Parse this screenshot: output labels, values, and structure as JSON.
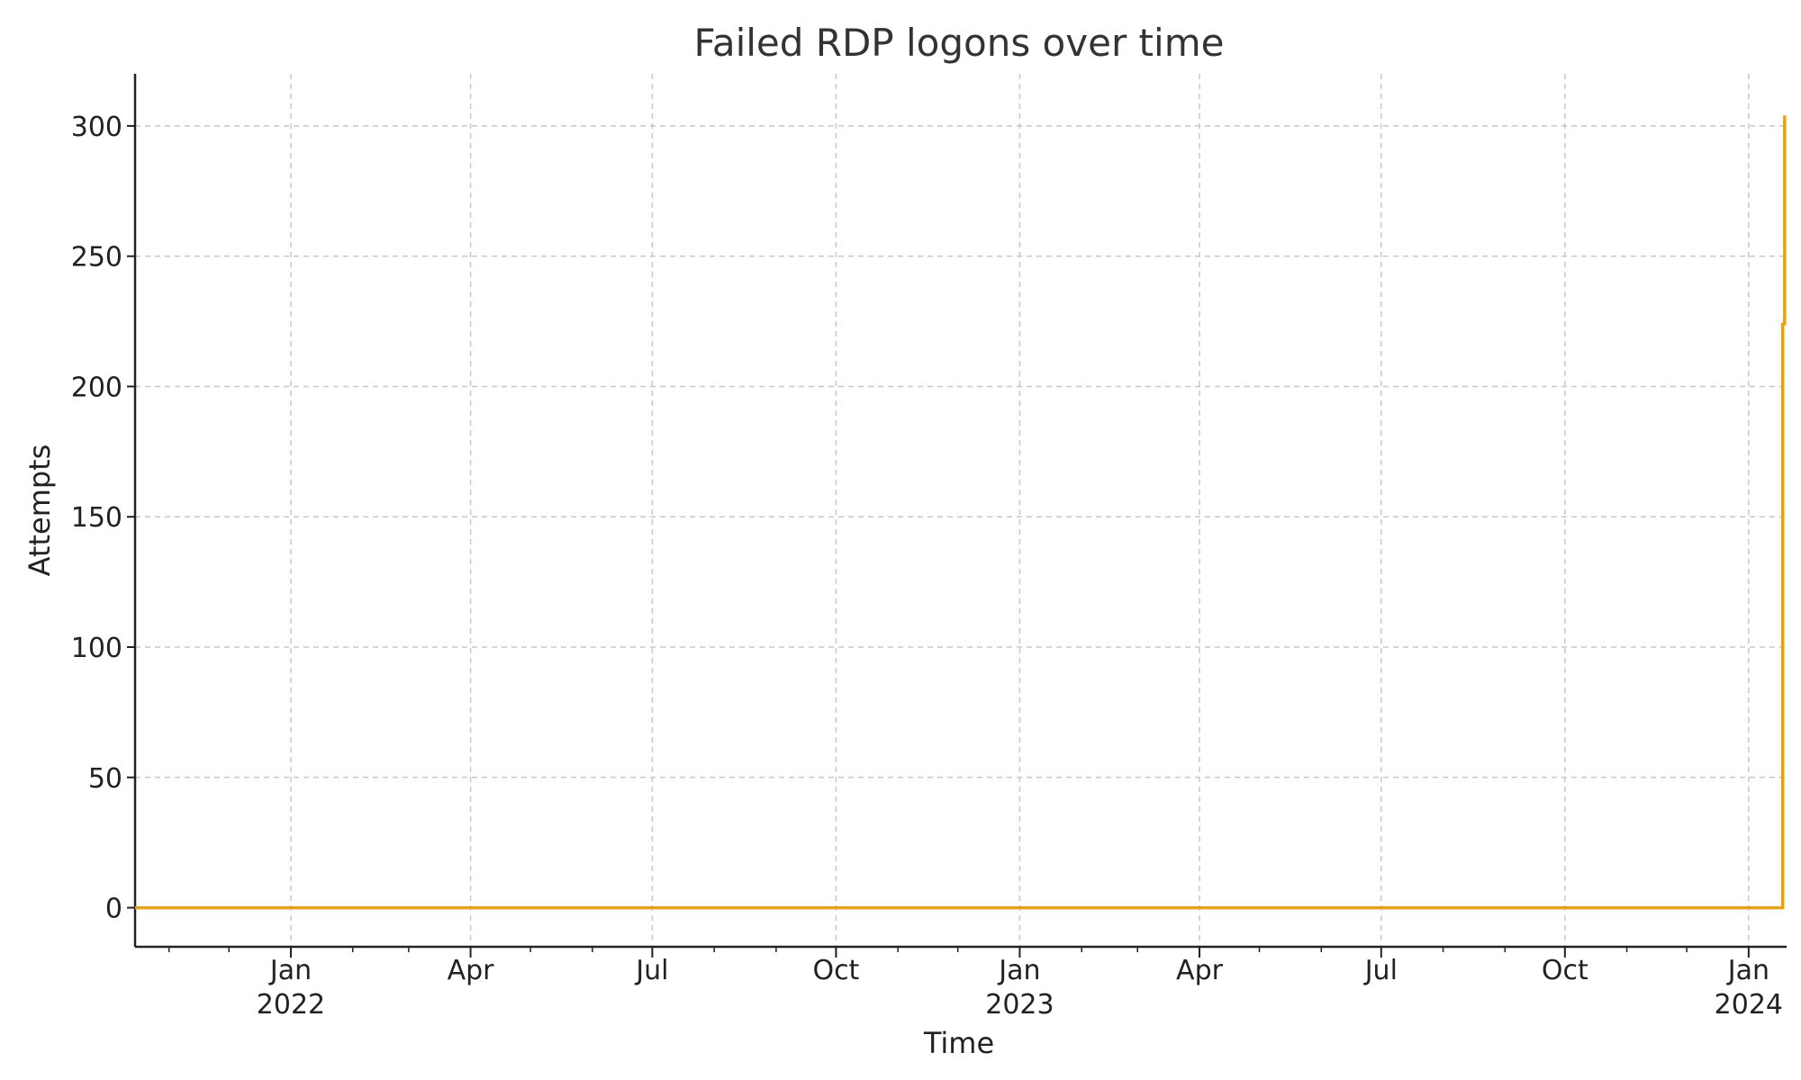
{
  "chart_data": {
    "type": "line",
    "title": "Failed RDP logons over time",
    "xlabel": "Time",
    "ylabel": "Attempts",
    "grid": true,
    "legend": "none",
    "xlim": [
      "2021-10-15",
      "2024-01-20"
    ],
    "ylim": [
      -15,
      320
    ],
    "yticks": [
      0,
      50,
      100,
      150,
      200,
      250,
      300
    ],
    "xticks": [
      {
        "date": "2022-01-01",
        "label": "Jan",
        "year": "2022"
      },
      {
        "date": "2022-04-01",
        "label": "Apr",
        "year": ""
      },
      {
        "date": "2022-07-01",
        "label": "Jul",
        "year": ""
      },
      {
        "date": "2022-10-01",
        "label": "Oct",
        "year": ""
      },
      {
        "date": "2023-01-01",
        "label": "Jan",
        "year": "2023"
      },
      {
        "date": "2023-04-01",
        "label": "Apr",
        "year": ""
      },
      {
        "date": "2023-07-01",
        "label": "Jul",
        "year": ""
      },
      {
        "date": "2023-10-01",
        "label": "Oct",
        "year": ""
      },
      {
        "date": "2024-01-01",
        "label": "Jan",
        "year": "2024"
      }
    ],
    "series": [
      {
        "color": "#E3A21A",
        "x": [
          "2021-10-15",
          "2024-01-17",
          "2024-01-18",
          "2024-01-18",
          "2024-01-19",
          "2024-01-19"
        ],
        "y": [
          0,
          0,
          0,
          224,
          224,
          304
        ]
      }
    ]
  }
}
